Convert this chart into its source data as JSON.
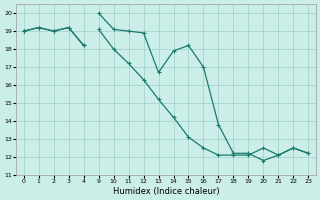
{
  "xlabel": "Humidex (Indice chaleur)",
  "ylabel": "",
  "background_color": "#cceee8",
  "grid_color": "#aad8d0",
  "line_color": "#1a7a6e",
  "ylim": [
    11,
    20.5
  ],
  "yticks": [
    11,
    12,
    13,
    14,
    15,
    16,
    17,
    18,
    19,
    20
  ],
  "xtick_labels": [
    "0",
    "1",
    "2",
    "3",
    "4",
    "",
    "",
    "",
    "",
    "9",
    "10",
    "11",
    "12",
    "13",
    "14",
    "15",
    "16",
    "17",
    "18",
    "19",
    "20",
    "21",
    "22",
    "23"
  ],
  "line1_x": [
    0,
    1,
    2,
    3,
    4,
    9,
    10,
    11,
    12,
    13,
    14,
    15,
    16,
    17,
    18,
    19,
    20,
    21,
    22,
    23
  ],
  "line1_y": [
    19,
    19.2,
    19.0,
    19.2,
    18.2,
    20.0,
    19.1,
    19.0,
    18.9,
    16.7,
    17.9,
    18.2,
    17.0,
    13.8,
    12.2,
    12.2,
    11.8,
    12.1,
    12.5,
    12.2
  ],
  "line2_x": [
    0,
    1,
    2,
    3,
    4,
    9,
    10,
    11,
    12,
    13,
    14,
    15,
    16,
    17,
    18,
    19,
    20,
    21,
    22,
    23
  ],
  "line2_y": [
    19,
    19.2,
    19.0,
    19.2,
    18.2,
    19.1,
    18.0,
    17.2,
    16.3,
    15.2,
    14.2,
    13.1,
    12.5,
    12.1,
    12.1,
    12.1,
    12.5,
    12.1,
    12.5,
    12.2
  ]
}
